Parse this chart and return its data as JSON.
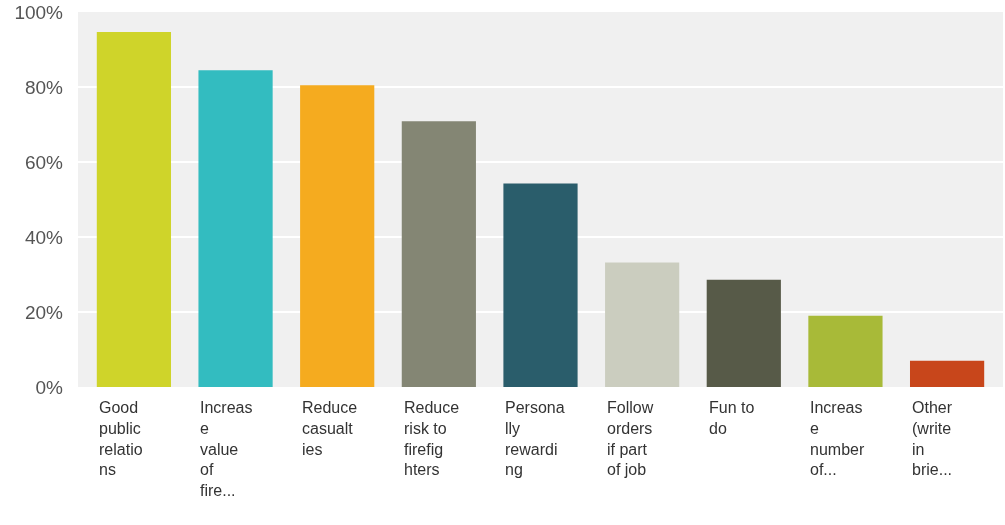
{
  "chart_data": {
    "type": "bar",
    "categories": [
      "Good public relations",
      "Increase value of fire...",
      "Reduce casualties",
      "Reduce risk to firefighters",
      "Personally rewarding",
      "Follow orders if part of job",
      "Fun to do",
      "Increase number of...",
      "Other (write in brie..."
    ],
    "values": [
      94.7,
      84.5,
      80.5,
      70.9,
      54.3,
      33.2,
      28.6,
      19.0,
      7.0
    ],
    "colors": [
      "#cfd42a",
      "#33bcc0",
      "#f5ab1f",
      "#848674",
      "#2a5d6b",
      "#cbcdbf",
      "#575a48",
      "#a8ba38",
      "#c8461b"
    ],
    "ylim": [
      0,
      100
    ],
    "yticks": [
      {
        "value": 0,
        "label": "0%"
      },
      {
        "value": 20,
        "label": "20%"
      },
      {
        "value": 40,
        "label": "40%"
      },
      {
        "value": 60,
        "label": "60%"
      },
      {
        "value": 80,
        "label": "80%"
      },
      {
        "value": 100,
        "label": "100%"
      }
    ],
    "grid": "y",
    "legend": false
  }
}
